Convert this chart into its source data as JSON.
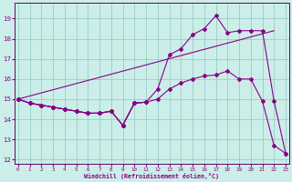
{
  "xlabel": "Windchill (Refroidissement éolien,°C)",
  "bg_color": "#cceee8",
  "line_color": "#880088",
  "grid_color": "#99cccc",
  "xlim": [
    -0.3,
    23.3
  ],
  "ylim": [
    11.8,
    19.8
  ],
  "yticks": [
    12,
    13,
    14,
    15,
    16,
    17,
    18,
    19
  ],
  "xticks": [
    0,
    1,
    2,
    3,
    4,
    5,
    6,
    7,
    8,
    9,
    10,
    11,
    12,
    13,
    14,
    15,
    16,
    17,
    18,
    19,
    20,
    21,
    22,
    23
  ],
  "line1_x": [
    0,
    1,
    2,
    3,
    4,
    5,
    6,
    7,
    8,
    9,
    10,
    11,
    12,
    13,
    14,
    15,
    16,
    17,
    18,
    19,
    20,
    21,
    22,
    23
  ],
  "line1_y": [
    15.0,
    14.8,
    14.7,
    14.6,
    14.5,
    14.4,
    14.3,
    14.3,
    14.4,
    13.7,
    14.8,
    14.85,
    15.5,
    17.2,
    17.5,
    18.2,
    18.5,
    19.15,
    18.3,
    18.4,
    18.4,
    18.4,
    14.9,
    12.3
  ],
  "line2_x": [
    0,
    1,
    2,
    3,
    4,
    5,
    6,
    7,
    8,
    9,
    10,
    11,
    12,
    13,
    14,
    15,
    16,
    17,
    18,
    19,
    20,
    21,
    22,
    23
  ],
  "line2_y": [
    15.0,
    14.8,
    14.7,
    14.6,
    14.5,
    14.4,
    14.3,
    14.3,
    14.4,
    13.7,
    14.8,
    14.85,
    15.0,
    15.5,
    15.8,
    16.0,
    16.15,
    16.2,
    16.4,
    16.0,
    16.0,
    14.9,
    12.7,
    12.3
  ],
  "line3_x": [
    0,
    1,
    2,
    3,
    4,
    5,
    6,
    7,
    8,
    9,
    10,
    11
  ],
  "line3_y": [
    15.0,
    14.8,
    14.7,
    14.6,
    14.5,
    14.4,
    14.3,
    14.3,
    14.4,
    13.7,
    14.8,
    14.85
  ],
  "trend_x": [
    0,
    22
  ],
  "trend_y": [
    15.0,
    18.4
  ]
}
